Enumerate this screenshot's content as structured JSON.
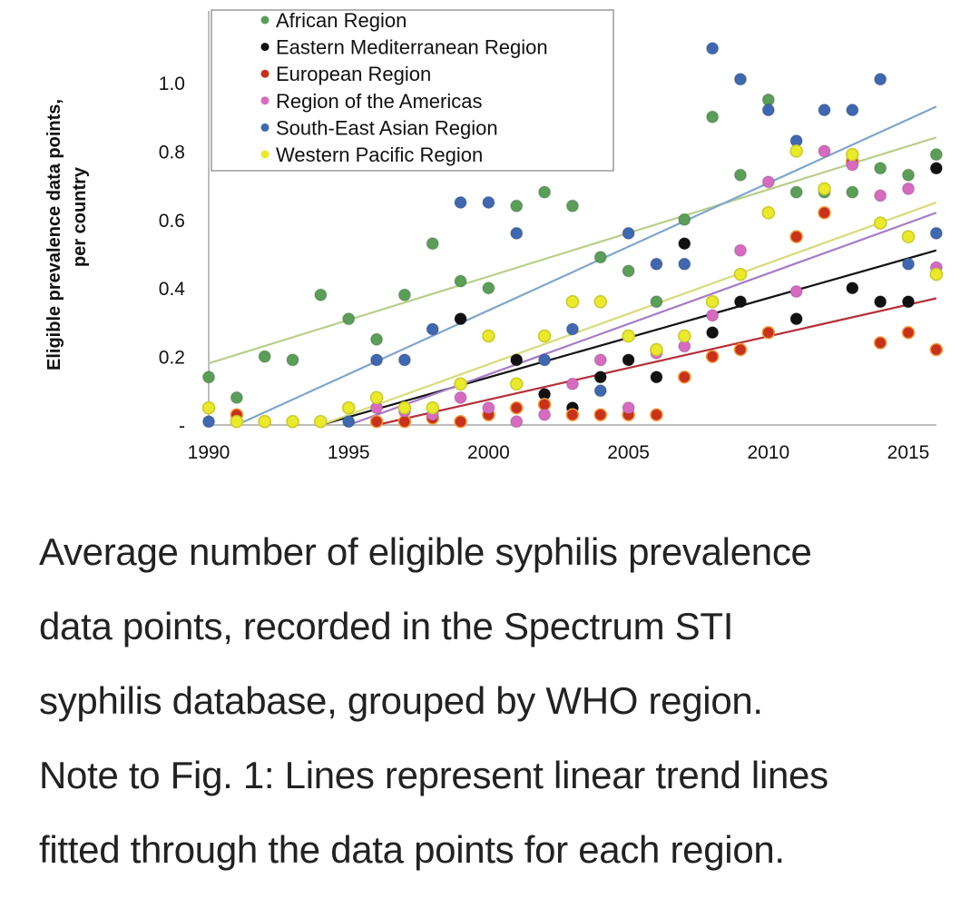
{
  "chart_data": {
    "type": "scatter",
    "title": "",
    "xlabel": "",
    "ylabel": "Eligible prevalence data points, per country",
    "ylabel_lines": [
      "Eligible prevalence data points,",
      "per country"
    ],
    "xlim": [
      1990,
      2016
    ],
    "ylim": [
      0,
      1.15
    ],
    "x_ticks": [
      1990,
      1995,
      2000,
      2005,
      2010,
      2015
    ],
    "x_tick_labels": [
      "1990",
      "1995",
      "2000",
      "2005",
      "2010",
      "2015"
    ],
    "y_ticks": [
      0,
      0.2,
      0.4,
      0.6,
      0.8,
      1.0
    ],
    "y_tick_labels": [
      "-",
      "0.2",
      "0.4",
      "0.6",
      "0.8",
      "1.0"
    ],
    "grid": false,
    "legend_position": "top-left",
    "series": [
      {
        "name": "African Region",
        "color": "#5a9e58",
        "points": [
          [
            1990,
            0.14
          ],
          [
            1991,
            0.08
          ],
          [
            1992,
            0.2
          ],
          [
            1993,
            0.19
          ],
          [
            1994,
            0.38
          ],
          [
            1995,
            0.31
          ],
          [
            1996,
            0.25
          ],
          [
            1997,
            0.38
          ],
          [
            1998,
            0.53
          ],
          [
            1999,
            0.42
          ],
          [
            2000,
            0.4
          ],
          [
            2001,
            0.64
          ],
          [
            2002,
            0.68
          ],
          [
            2003,
            0.64
          ],
          [
            2004,
            0.49
          ],
          [
            2005,
            0.45
          ],
          [
            2006,
            0.36
          ],
          [
            2007,
            0.6
          ],
          [
            2008,
            0.9
          ],
          [
            2009,
            0.73
          ],
          [
            2010,
            0.95
          ],
          [
            2011,
            0.68
          ],
          [
            2012,
            0.68
          ],
          [
            2013,
            0.68
          ],
          [
            2014,
            0.75
          ],
          [
            2015,
            0.73
          ],
          [
            2016,
            0.79
          ]
        ],
        "trend": {
          "color": "#b9cf8a",
          "from": [
            1990,
            0.18
          ],
          "to": [
            2016,
            0.84
          ]
        }
      },
      {
        "name": "Eastern Mediterranean Region",
        "color": "#111111",
        "points": [
          [
            1999,
            0.31
          ],
          [
            2001,
            0.19
          ],
          [
            2002,
            0.09
          ],
          [
            2003,
            0.05
          ],
          [
            2004,
            0.14
          ],
          [
            2005,
            0.19
          ],
          [
            2006,
            0.14
          ],
          [
            2007,
            0.53
          ],
          [
            2008,
            0.27
          ],
          [
            2009,
            0.36
          ],
          [
            2011,
            0.31
          ],
          [
            2013,
            0.4
          ],
          [
            2014,
            0.36
          ],
          [
            2015,
            0.36
          ],
          [
            2016,
            0.75
          ]
        ],
        "trend": {
          "color": "#111111",
          "from": [
            1994,
            0.0
          ],
          "to": [
            2016,
            0.51
          ]
        }
      },
      {
        "name": "European Region",
        "color": "#c8311a",
        "points": [
          [
            1991,
            0.03
          ],
          [
            1992,
            0.01
          ],
          [
            1996,
            0.01
          ],
          [
            1997,
            0.01
          ],
          [
            1998,
            0.02
          ],
          [
            1999,
            0.01
          ],
          [
            2000,
            0.03
          ],
          [
            2001,
            0.05
          ],
          [
            2002,
            0.06
          ],
          [
            2003,
            0.03
          ],
          [
            2004,
            0.03
          ],
          [
            2005,
            0.03
          ],
          [
            2006,
            0.03
          ],
          [
            2007,
            0.14
          ],
          [
            2008,
            0.2
          ],
          [
            2009,
            0.22
          ],
          [
            2010,
            0.27
          ],
          [
            2011,
            0.55
          ],
          [
            2012,
            0.62
          ],
          [
            2013,
            0.77
          ],
          [
            2014,
            0.24
          ],
          [
            2015,
            0.27
          ],
          [
            2016,
            0.22
          ]
        ],
        "trend": {
          "color": "#b5303a",
          "from": [
            1996,
            0.0
          ],
          "to": [
            2016,
            0.37
          ]
        }
      },
      {
        "name": "Region of the Americas",
        "color": "#d66bc0",
        "points": [
          [
            1996,
            0.05
          ],
          [
            1997,
            0.04
          ],
          [
            1998,
            0.03
          ],
          [
            1999,
            0.08
          ],
          [
            2000,
            0.05
          ],
          [
            2001,
            0.01
          ],
          [
            2002,
            0.03
          ],
          [
            2003,
            0.12
          ],
          [
            2004,
            0.19
          ],
          [
            2005,
            0.05
          ],
          [
            2006,
            0.21
          ],
          [
            2007,
            0.23
          ],
          [
            2008,
            0.32
          ],
          [
            2009,
            0.51
          ],
          [
            2010,
            0.71
          ],
          [
            2011,
            0.39
          ],
          [
            2012,
            0.8
          ],
          [
            2013,
            0.76
          ],
          [
            2014,
            0.67
          ],
          [
            2015,
            0.69
          ],
          [
            2016,
            0.46
          ]
        ],
        "trend": {
          "color": "#a77bc8",
          "from": [
            1995,
            0.0
          ],
          "to": [
            2016,
            0.62
          ]
        }
      },
      {
        "name": "South-East Asian Region",
        "color": "#3f68b0",
        "points": [
          [
            1990,
            0.01
          ],
          [
            1995,
            0.01
          ],
          [
            1996,
            0.19
          ],
          [
            1997,
            0.19
          ],
          [
            1998,
            0.28
          ],
          [
            1999,
            0.65
          ],
          [
            2000,
            0.65
          ],
          [
            2001,
            0.56
          ],
          [
            2002,
            0.19
          ],
          [
            2003,
            0.28
          ],
          [
            2004,
            0.1
          ],
          [
            2005,
            0.56
          ],
          [
            2006,
            0.47
          ],
          [
            2007,
            0.47
          ],
          [
            2008,
            1.1
          ],
          [
            2009,
            1.01
          ],
          [
            2010,
            0.92
          ],
          [
            2011,
            0.83
          ],
          [
            2012,
            0.92
          ],
          [
            2013,
            0.92
          ],
          [
            2014,
            1.01
          ],
          [
            2015,
            0.47
          ],
          [
            2016,
            0.56
          ]
        ],
        "trend": {
          "color": "#7fa6cc",
          "from": [
            1991,
            0.0
          ],
          "to": [
            2016,
            0.93
          ]
        }
      },
      {
        "name": "Western Pacific Region",
        "color": "#eaea2a",
        "points": [
          [
            1990,
            0.05
          ],
          [
            1991,
            0.01
          ],
          [
            1992,
            0.01
          ],
          [
            1993,
            0.01
          ],
          [
            1994,
            0.01
          ],
          [
            1995,
            0.05
          ],
          [
            1996,
            0.08
          ],
          [
            1997,
            0.05
          ],
          [
            1998,
            0.05
          ],
          [
            1999,
            0.12
          ],
          [
            2000,
            0.26
          ],
          [
            2001,
            0.12
          ],
          [
            2002,
            0.26
          ],
          [
            2003,
            0.36
          ],
          [
            2004,
            0.36
          ],
          [
            2005,
            0.26
          ],
          [
            2006,
            0.22
          ],
          [
            2007,
            0.26
          ],
          [
            2008,
            0.36
          ],
          [
            2009,
            0.44
          ],
          [
            2010,
            0.62
          ],
          [
            2011,
            0.8
          ],
          [
            2012,
            0.69
          ],
          [
            2013,
            0.79
          ],
          [
            2014,
            0.59
          ],
          [
            2015,
            0.55
          ],
          [
            2016,
            0.44
          ]
        ],
        "trend": {
          "color": "#d7dc7a",
          "from": [
            1994,
            0.0
          ],
          "to": [
            2016,
            0.65
          ]
        }
      }
    ]
  },
  "caption": {
    "lines": [
      "Average number of eligible syphilis prevalence",
      "data points, recorded in the Spectrum STI",
      "syphilis database, grouped by WHO region.",
      "Note to Fig. 1: Lines represent linear trend lines",
      "fitted through the data points for each region."
    ]
  }
}
